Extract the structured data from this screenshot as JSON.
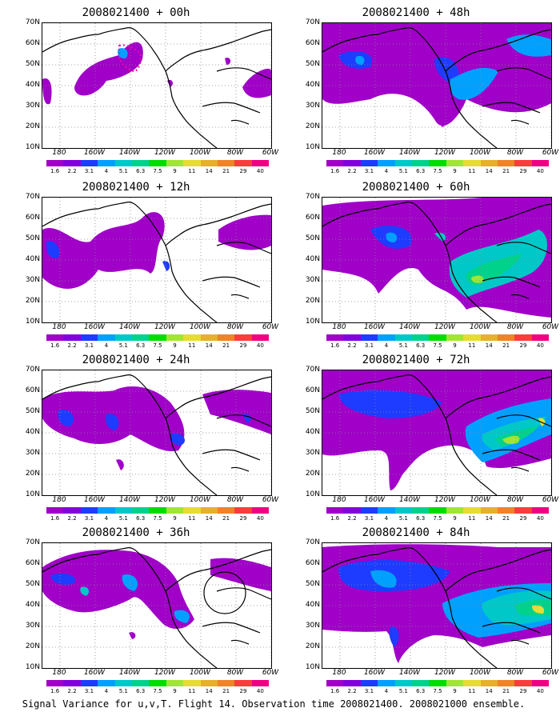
{
  "panels": [
    {
      "title": "2008021400 + 00h",
      "lead": "00h"
    },
    {
      "title": "2008021400 + 48h",
      "lead": "48h"
    },
    {
      "title": "2008021400 + 12h",
      "lead": "12h"
    },
    {
      "title": "2008021400 + 60h",
      "lead": "60h"
    },
    {
      "title": "2008021400 + 24h",
      "lead": "24h"
    },
    {
      "title": "2008021400 + 72h",
      "lead": "72h"
    },
    {
      "title": "2008021400 + 36h",
      "lead": "36h"
    },
    {
      "title": "2008021400 + 84h",
      "lead": "84h"
    }
  ],
  "lat_labels": [
    "70N",
    "60N",
    "50N",
    "40N",
    "30N",
    "20N",
    "10N"
  ],
  "lon_labels": [
    "180",
    "160W",
    "140W",
    "120W",
    "100W",
    "80W",
    "60W"
  ],
  "colorbar": {
    "labels": [
      "1.6",
      "2.2",
      "3.1",
      "4",
      "5.1",
      "6.3",
      "7.5",
      "9",
      "11",
      "14",
      "21",
      "29",
      "40"
    ],
    "colors": [
      "#a000c8",
      "#8200dc",
      "#1e3cff",
      "#00a0ff",
      "#00c8c8",
      "#00d28c",
      "#00dc00",
      "#a0e632",
      "#e6dc32",
      "#e6af2d",
      "#f08228",
      "#fa3c3c",
      "#f00082"
    ]
  },
  "caption": "Signal Variance for u,v,T. Flight 14. Observation time 2008021400. 2008021000 ensemble."
}
